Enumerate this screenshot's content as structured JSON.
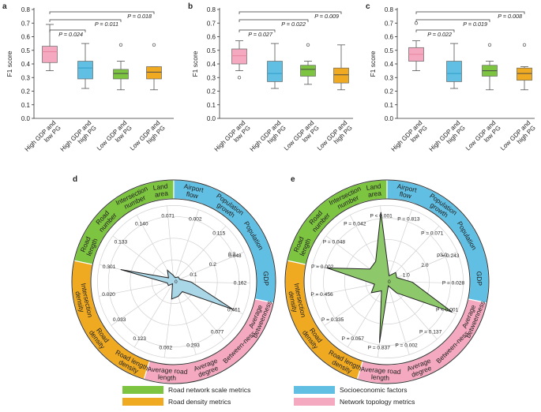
{
  "colors": {
    "pink": "#f4a9c0",
    "pink_line": "#e8869f",
    "blue": "#60bfe3",
    "blue_line": "#2f9dc7",
    "green": "#7dc440",
    "orange": "#f0aa22",
    "radar_blue": "#a9d7e8",
    "radar_green": "#8dc86b",
    "median_line": "#4a4a4a"
  },
  "chart_data": [
    {
      "panel": "a",
      "type": "box",
      "ylabel": "F1 score",
      "ylim": [
        0.0,
        0.8
      ],
      "yticks": [
        "0.0",
        "0.1",
        "0.2",
        "0.3",
        "0.4",
        "0.5",
        "0.6",
        "0.7",
        "0.8"
      ],
      "categories": [
        "High GDP and low PG",
        "High GDP and high PG",
        "Low GDP and low PG",
        "Low GDP and high PG"
      ],
      "boxes": [
        {
          "min": 0.35,
          "q1": 0.41,
          "median": 0.49,
          "q3": 0.53,
          "max": 0.69,
          "outliers": []
        },
        {
          "min": 0.22,
          "q1": 0.29,
          "median": 0.37,
          "q3": 0.42,
          "max": 0.55,
          "outliers": []
        },
        {
          "min": 0.21,
          "q1": 0.29,
          "median": 0.33,
          "q3": 0.36,
          "max": 0.42,
          "outliers": [
            0.54
          ]
        },
        {
          "min": 0.21,
          "q1": 0.29,
          "median": 0.34,
          "q3": 0.38,
          "max": 0.38,
          "outliers": [
            0.54
          ]
        }
      ],
      "comparisons": [
        {
          "to": 2,
          "p": "P = 0.024"
        },
        {
          "to": 3,
          "p": "P = 0.011"
        },
        {
          "to": 4,
          "p": "P = 0.018"
        }
      ]
    },
    {
      "panel": "b",
      "type": "box",
      "ylabel": "F1 score",
      "ylim": [
        0.0,
        0.8
      ],
      "yticks": [
        "0.0",
        "0.1",
        "0.2",
        "0.3",
        "0.4",
        "0.5",
        "0.6",
        "0.7",
        "0.8"
      ],
      "categories": [
        "High GDP and low PG",
        "High GDP and high PG",
        "Low GDP and low PG",
        "Low GDP and high PG"
      ],
      "boxes": [
        {
          "min": 0.35,
          "q1": 0.4,
          "median": 0.46,
          "q3": 0.51,
          "max": 0.57,
          "outliers": [
            0.3
          ]
        },
        {
          "min": 0.22,
          "q1": 0.27,
          "median": 0.33,
          "q3": 0.42,
          "max": 0.55,
          "outliers": []
        },
        {
          "min": 0.25,
          "q1": 0.31,
          "median": 0.36,
          "q3": 0.39,
          "max": 0.42,
          "outliers": [
            0.54
          ]
        },
        {
          "min": 0.21,
          "q1": 0.26,
          "median": 0.32,
          "q3": 0.37,
          "max": 0.54,
          "outliers": []
        }
      ],
      "comparisons": [
        {
          "to": 2,
          "p": "P = 0.027"
        },
        {
          "to": 3,
          "p": "P = 0.022"
        },
        {
          "to": 4,
          "p": "P = 0.009"
        }
      ]
    },
    {
      "panel": "c",
      "type": "box",
      "ylabel": "F1 score",
      "ylim": [
        0.0,
        0.8
      ],
      "yticks": [
        "0.0",
        "0.1",
        "0.2",
        "0.3",
        "0.4",
        "0.5",
        "0.6",
        "0.7",
        "0.8"
      ],
      "categories": [
        "High GDP and low PG",
        "High GDP and high PG",
        "Low GDP and low PG",
        "Low GDP and high PG"
      ],
      "boxes": [
        {
          "min": 0.35,
          "q1": 0.42,
          "median": 0.47,
          "q3": 0.52,
          "max": 0.57,
          "outliers": [
            0.7
          ]
        },
        {
          "min": 0.22,
          "q1": 0.27,
          "median": 0.33,
          "q3": 0.42,
          "max": 0.55,
          "outliers": []
        },
        {
          "min": 0.21,
          "q1": 0.31,
          "median": 0.35,
          "q3": 0.39,
          "max": 0.42,
          "outliers": [
            0.54
          ]
        },
        {
          "min": 0.21,
          "q1": 0.28,
          "median": 0.33,
          "q3": 0.37,
          "max": 0.38,
          "outliers": [
            0.54
          ]
        }
      ],
      "comparisons": [
        {
          "to": 2,
          "p": "P = 0.022"
        },
        {
          "to": 3,
          "p": "P = 0.019"
        },
        {
          "to": 4,
          "p": "P = 0.008"
        }
      ]
    },
    {
      "panel": "d",
      "type": "radar",
      "rings": [
        "0.1",
        "0.2",
        "0.3"
      ],
      "rmax": 0.35,
      "axes": [
        "Land area",
        "Airport flow",
        "Population growth",
        "Population",
        "GDP",
        "Average betweenness",
        "Between-ness",
        "Average degree",
        "Average road length",
        "Road length density",
        "Road density",
        "Intersection density",
        "Road length",
        "Road number",
        "Intersection number"
      ],
      "values": [
        0.03,
        0.02,
        0.03,
        0.03,
        0.08,
        0.3,
        0.06,
        0.07,
        0.08,
        0.01,
        0.03,
        0.03,
        0.25,
        0.03,
        0.06
      ],
      "pvalues": [
        "0.071",
        "0.002",
        "0.115",
        "0.048",
        "0.162",
        "0.461",
        "0.077",
        "0.293",
        "0.002",
        "0.123",
        "0.033",
        "0.020",
        "0.301",
        "0.133",
        "0.140"
      ],
      "zero_label": "0",
      "groups": [
        {
          "name": "Road network scale metrics",
          "segment_labels": [
            "Road length",
            "Road number",
            "Intersection number",
            "Land area"
          ],
          "color": "green"
        },
        {
          "name": "Socioeconomic factors",
          "segment_labels": [
            "Airport flow",
            "Population growth",
            "Population",
            "GDP"
          ],
          "color": "blue"
        },
        {
          "name": "Network topology metrics",
          "segment_labels": [
            "Average betweenness",
            "Between-ness",
            "Average degree",
            "Average road length"
          ],
          "color": "pink"
        },
        {
          "name": "Road density metrics",
          "segment_labels": [
            "Road length density",
            "Road density",
            "Intersection density"
          ],
          "color": "orange"
        }
      ]
    },
    {
      "panel": "e",
      "type": "radar",
      "rings": [
        "1.0",
        "2.0",
        "3.0"
      ],
      "rmax": 3.6,
      "axes": [
        "Land area",
        "Airport flow",
        "Population growth",
        "Population",
        "GDP",
        "Average betweenness",
        "Between-ness",
        "Average degree",
        "Average road length",
        "Road length density",
        "Road density",
        "Intersection density",
        "Road length",
        "Road number",
        "Intersection number"
      ],
      "values": [
        3.3,
        0.3,
        0.6,
        0.5,
        1.2,
        3.4,
        0.7,
        0.2,
        2.9,
        0.5,
        0.9,
        0.6,
        2.9,
        1.0,
        1.1
      ],
      "pvalues": [
        "P < 0.001",
        "P = 0.813",
        "P = 0.071",
        "P = 0.243",
        "P = 0.028",
        "P < 0.001",
        "P = 0.137",
        "P = 0.002",
        "P = 0.837",
        "P = 0.057",
        "P = 0.335",
        "P = 0.456",
        "P = 0.002",
        "P = 0.048",
        "P = 0.042"
      ],
      "zero_label": "0",
      "groups": [
        {
          "name": "Road network scale metrics",
          "segment_labels": [
            "Road length",
            "Road number",
            "Intersection number",
            "Land area"
          ],
          "color": "green"
        },
        {
          "name": "Socioeconomic factors",
          "segment_labels": [
            "Airport flow",
            "Population growth",
            "Population",
            "GDP"
          ],
          "color": "blue"
        },
        {
          "name": "Network topology metrics",
          "segment_labels": [
            "Average betweenness",
            "Between-ness",
            "Average degree",
            "Average road length"
          ],
          "color": "pink"
        },
        {
          "name": "Road density metrics",
          "segment_labels": [
            "Road length density",
            "Road density",
            "Intersection density"
          ],
          "color": "orange"
        }
      ]
    }
  ],
  "legend": [
    {
      "label": "Road network scale metrics",
      "color": "green"
    },
    {
      "label": "Socioeconomic factors",
      "color": "blue"
    },
    {
      "label": "Road density metrics",
      "color": "orange"
    },
    {
      "label": "Network topology metrics",
      "color": "pink"
    }
  ]
}
